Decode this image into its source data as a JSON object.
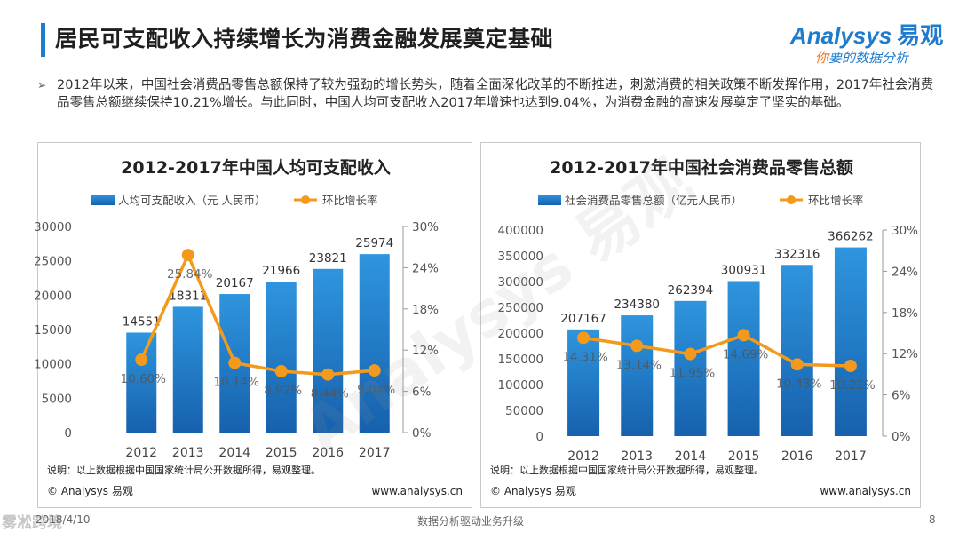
{
  "header": {
    "title": "居民可支配收入持续增长为消费金融发展奠定基础"
  },
  "logo": {
    "text": "Analysys",
    "cn": "易观",
    "slogan_first": "你",
    "slogan_rest": "要的数据分析"
  },
  "summary": {
    "bullet": "➢",
    "text": "2012年以来，中国社会消费品零售总额保持了较为强劲的增长势头，随着全面深化改革的不断推进，刺激消费的相关政策不断发挥作用，2017年社会消费品零售总额继续保持10.21%增长。与此同时，中国人均可支配收入2017年增速也达到9.04%，为消费金融的高速发展奠定了坚实的基础。"
  },
  "watermark": {
    "text": "Analysys 易观"
  },
  "footer": {
    "date": "2018/4/10",
    "center": "数据分析驱动业务升级",
    "page": "8",
    "wm": "雾凇跨境"
  },
  "colors": {
    "bar_top": "#2f95de",
    "bar_bottom": "#1661ad",
    "line": "#f39a1d",
    "title_accent": "#1f7ccc"
  },
  "chart_data": [
    {
      "type": "bar",
      "title": "2012-2017年中国人均可支配收入",
      "legend": [
        "人均可支配收入（元 人民币）",
        "环比增长率"
      ],
      "categories": [
        "2012",
        "2013",
        "2014",
        "2015",
        "2016",
        "2017"
      ],
      "series": [
        {
          "name": "人均可支配收入（元 人民币）",
          "values": [
            14551,
            18311,
            20167,
            21966,
            23821,
            25974
          ],
          "labels": [
            "14551",
            "18311",
            "20167",
            "21966",
            "23821",
            "25974"
          ],
          "axis": "left"
        },
        {
          "name": "环比增长率",
          "values": [
            10.6,
            25.84,
            10.14,
            8.92,
            8.44,
            9.04
          ],
          "labels": [
            "10.60%",
            "25.84%",
            "10.14%",
            "8.92%",
            "8.44%",
            "9.04%"
          ],
          "axis": "right",
          "type": "line"
        }
      ],
      "ylim": [
        0,
        30000
      ],
      "yticks": [
        "0",
        "5000",
        "10000",
        "15000",
        "20000",
        "25000",
        "30000"
      ],
      "y2lim": [
        0,
        30
      ],
      "y2ticks": [
        "0%",
        "6%",
        "12%",
        "18%",
        "24%",
        "30%"
      ],
      "note": "说明：以上数据根据中国国家统计局公开数据所得，易观整理。",
      "copyright": "© Analysys 易观",
      "url": "www.analysys.cn"
    },
    {
      "type": "bar",
      "title": "2012-2017年中国社会消费品零售总额",
      "legend": [
        "社会消费品零售总额（亿元人民币）",
        "环比增长率"
      ],
      "categories": [
        "2012",
        "2013",
        "2014",
        "2015",
        "2016",
        "2017"
      ],
      "series": [
        {
          "name": "社会消费品零售总额（亿元人民币）",
          "values": [
            207167,
            234380,
            262394,
            300931,
            332316,
            366262
          ],
          "labels": [
            "207167",
            "234380",
            "262394",
            "300931",
            "332316",
            "366262"
          ],
          "axis": "left"
        },
        {
          "name": "环比增长率",
          "values": [
            14.31,
            13.14,
            11.95,
            14.69,
            10.43,
            10.21
          ],
          "labels": [
            "14.31%",
            "13.14%",
            "11.95%",
            "14.69%",
            "10.43%",
            "10.21%"
          ],
          "axis": "right",
          "type": "line"
        }
      ],
      "ylim": [
        0,
        400000
      ],
      "yticks": [
        "0",
        "50000",
        "100000",
        "150000",
        "200000",
        "250000",
        "300000",
        "350000",
        "400000"
      ],
      "y2lim": [
        0,
        30
      ],
      "y2ticks": [
        "0%",
        "6%",
        "12%",
        "18%",
        "24%",
        "30%"
      ],
      "note": "说明：以上数据根据中国国家统计局公开数据所得，易观整理。",
      "copyright": "© Analysys 易观",
      "url": "www.analysys.cn"
    }
  ]
}
